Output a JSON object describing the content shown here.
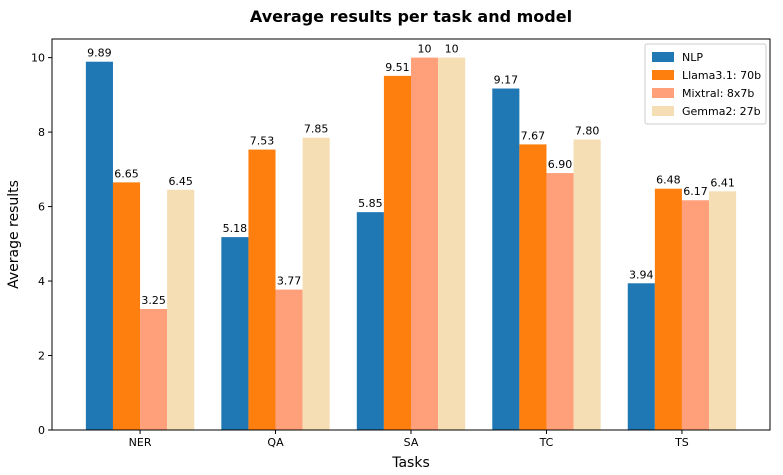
{
  "chart_data": {
    "type": "bar",
    "title": "Average results per task and model",
    "xlabel": "Tasks",
    "ylabel": "Average results",
    "categories": [
      "NER",
      "QA",
      "SA",
      "TC",
      "TS"
    ],
    "ylim": [
      0,
      10.5
    ],
    "yticks": [
      0,
      2,
      4,
      6,
      8,
      10
    ],
    "grid": false,
    "legend_position": "top-right",
    "series": [
      {
        "name": "NLP",
        "color": "#1f77b4",
        "values": [
          9.89,
          5.18,
          5.85,
          9.17,
          3.94
        ],
        "labels": [
          "9.89",
          "5.18",
          "5.85",
          "9.17",
          "3.94"
        ]
      },
      {
        "name": "Llama3.1: 70b",
        "color": "#ff7f0e",
        "values": [
          6.65,
          7.53,
          9.51,
          7.67,
          6.48
        ],
        "labels": [
          "6.65",
          "7.53",
          "9.51",
          "7.67",
          "6.48"
        ]
      },
      {
        "name": "Mixtral: 8x7b",
        "color": "#ffa07a",
        "values": [
          3.25,
          3.77,
          10,
          6.9,
          6.17
        ],
        "labels": [
          "3.25",
          "3.77",
          "10",
          "6.90",
          "6.17"
        ]
      },
      {
        "name": "Gemma2: 27b",
        "color": "#f5deb3",
        "values": [
          6.45,
          7.85,
          10,
          7.8,
          6.41
        ],
        "labels": [
          "6.45",
          "7.85",
          "10",
          "7.80",
          "6.41"
        ]
      }
    ]
  }
}
